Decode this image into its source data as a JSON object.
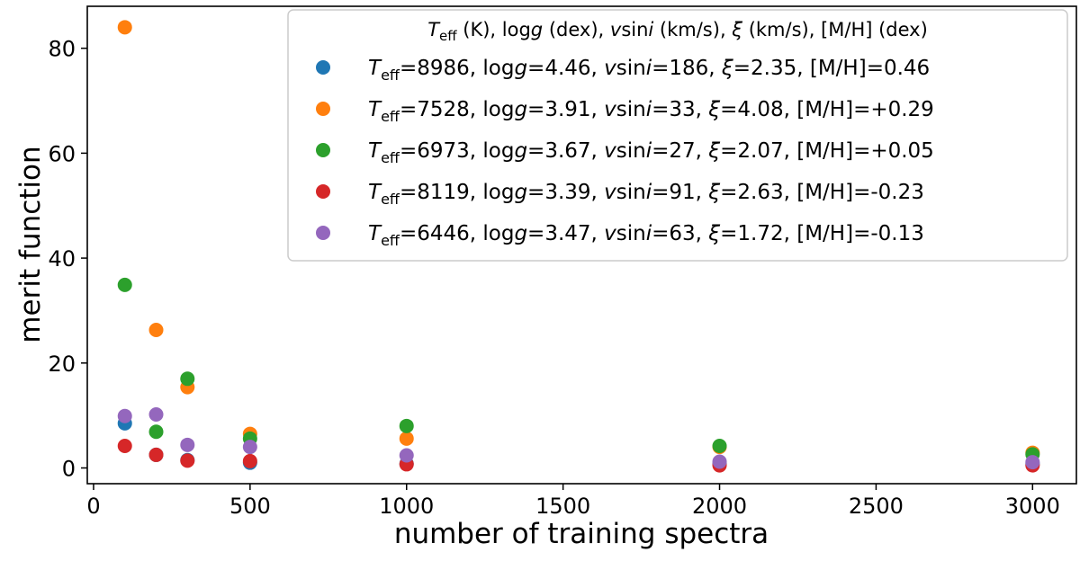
{
  "chart_data": {
    "type": "scatter",
    "title": "",
    "xlabel": "number of training spectra",
    "ylabel": "merit function",
    "xlim": [
      -20,
      3140
    ],
    "ylim": [
      -3,
      88
    ],
    "xticks": [
      0,
      500,
      1000,
      1500,
      2000,
      2500,
      3000
    ],
    "yticks": [
      0,
      20,
      40,
      60,
      80
    ],
    "grid": false,
    "legend": {
      "placement": "top-right",
      "title": "T_eff (K), log g (dex), v sin i (km/s), ξ (km/s), [M/H] (dex)",
      "title_parts": [
        "T",
        "eff",
        " (K), log",
        "g",
        " (dex), ",
        "v",
        "sin",
        "i",
        " (km/s), ",
        "ξ",
        " (km/s), [M/H] (dex)"
      ]
    },
    "series": [
      {
        "name": "T_eff=8986, log g=4.46, v sin i=186, ξ=2.35, [M/H]=0.46",
        "label": {
          "teff": "8986",
          "logg": "4.46",
          "vsini": "186",
          "xi": "2.35",
          "mh": "0.46"
        },
        "color": "#1f77b4",
        "x": [
          100,
          200,
          300,
          500,
          1000,
          2000,
          3000
        ],
        "y": [
          8.5,
          2.5,
          1.5,
          1.0,
          0.8,
          0.8,
          0.8
        ]
      },
      {
        "name": "T_eff=7528, log g=3.91, v sin i=33, ξ=4.08, [M/H]=+0.29",
        "label": {
          "teff": "7528",
          "logg": "3.91",
          "vsini": "33",
          "xi": "4.08",
          "mh": "+0.29"
        },
        "color": "#ff7f0e",
        "x": [
          100,
          200,
          300,
          500,
          1000,
          2000,
          3000
        ],
        "y": [
          84,
          26.3,
          15.4,
          6.5,
          5.6,
          4.0,
          2.9
        ]
      },
      {
        "name": "T_eff=6973, log g=3.67, v sin i=27, ξ=2.07, [M/H]=+0.05",
        "label": {
          "teff": "6973",
          "logg": "3.67",
          "vsini": "27",
          "xi": "2.07",
          "mh": "+0.05"
        },
        "color": "#2ca02c",
        "x": [
          100,
          200,
          300,
          500,
          1000,
          2000,
          3000
        ],
        "y": [
          34.9,
          6.9,
          17.0,
          5.6,
          8.0,
          4.2,
          2.6
        ]
      },
      {
        "name": "T_eff=8119, log g=3.39, v sin i=91, ξ=2.63, [M/H]=-0.23",
        "label": {
          "teff": "8119",
          "logg": "3.39",
          "vsini": "91",
          "xi": "2.63",
          "mh": "-0.23"
        },
        "color": "#d62728",
        "x": [
          100,
          200,
          300,
          500,
          1000,
          2000,
          3000
        ],
        "y": [
          4.2,
          2.5,
          1.4,
          1.3,
          0.7,
          0.5,
          0.5
        ]
      },
      {
        "name": "T_eff=6446, log g=3.47, v sin i=63, ξ=1.72, [M/H]=-0.13",
        "label": {
          "teff": "6446",
          "logg": "3.47",
          "vsini": "63",
          "xi": "1.72",
          "mh": "-0.13"
        },
        "color": "#9467bd",
        "x": [
          100,
          200,
          300,
          500,
          1000,
          2000,
          3000
        ],
        "y": [
          9.9,
          10.2,
          4.4,
          4.0,
          2.4,
          1.2,
          1.1
        ]
      }
    ]
  }
}
